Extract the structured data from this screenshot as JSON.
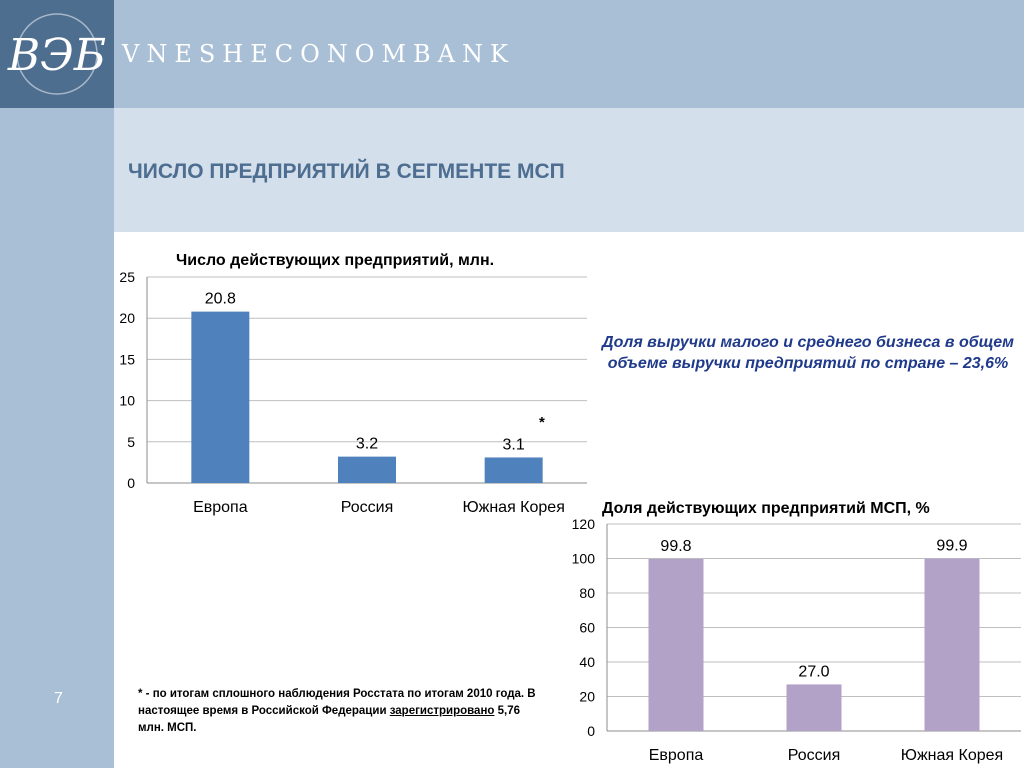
{
  "header": {
    "brand": "VNESHECONOMBANK",
    "logo_text": "ВЭБ"
  },
  "page_title": "ЧИСЛО ПРЕДПРИЯТИЙ В СЕГМЕНТЕ МСП",
  "page_number": "7",
  "note": "Доля выручки малого и среднего бизнеса в общем объеме выручки предприятий по стране – 23,6%",
  "asterisk": "*",
  "footnote": {
    "part1": "* - по итогам сплошного наблюдения Росстата по итогам 2010 года. В настоящее время в Российской Федерации ",
    "underlined": "зарегистрировано",
    "part2": " 5,76 млн. МСП."
  },
  "colors": {
    "chart1_bar": "#4f81bd",
    "chart2_bar": "#b3a2c7",
    "title": "#4d6d91",
    "note": "#1f3a8a"
  },
  "chart_data": [
    {
      "type": "bar",
      "title": "Число действующих предприятий, млн.",
      "categories": [
        "Европа",
        "Россия",
        "Южная Корея"
      ],
      "values": [
        20.8,
        3.2,
        3.1
      ],
      "data_labels": [
        "20.8",
        "3.2",
        "3.1"
      ],
      "ylim": [
        0,
        25
      ],
      "yticks": [
        0,
        5,
        10,
        15,
        20,
        25
      ],
      "grid": true,
      "legend": "none"
    },
    {
      "type": "bar",
      "title": "Доля действующих предприятий МСП, %",
      "categories": [
        "Европа",
        "Россия",
        "Южная Корея"
      ],
      "values": [
        99.8,
        27.0,
        99.9
      ],
      "data_labels": [
        "99.8",
        "27.0",
        "99.9"
      ],
      "ylim": [
        0,
        120
      ],
      "yticks": [
        0,
        20,
        40,
        60,
        80,
        100,
        120
      ],
      "grid": true,
      "legend": "none"
    }
  ]
}
